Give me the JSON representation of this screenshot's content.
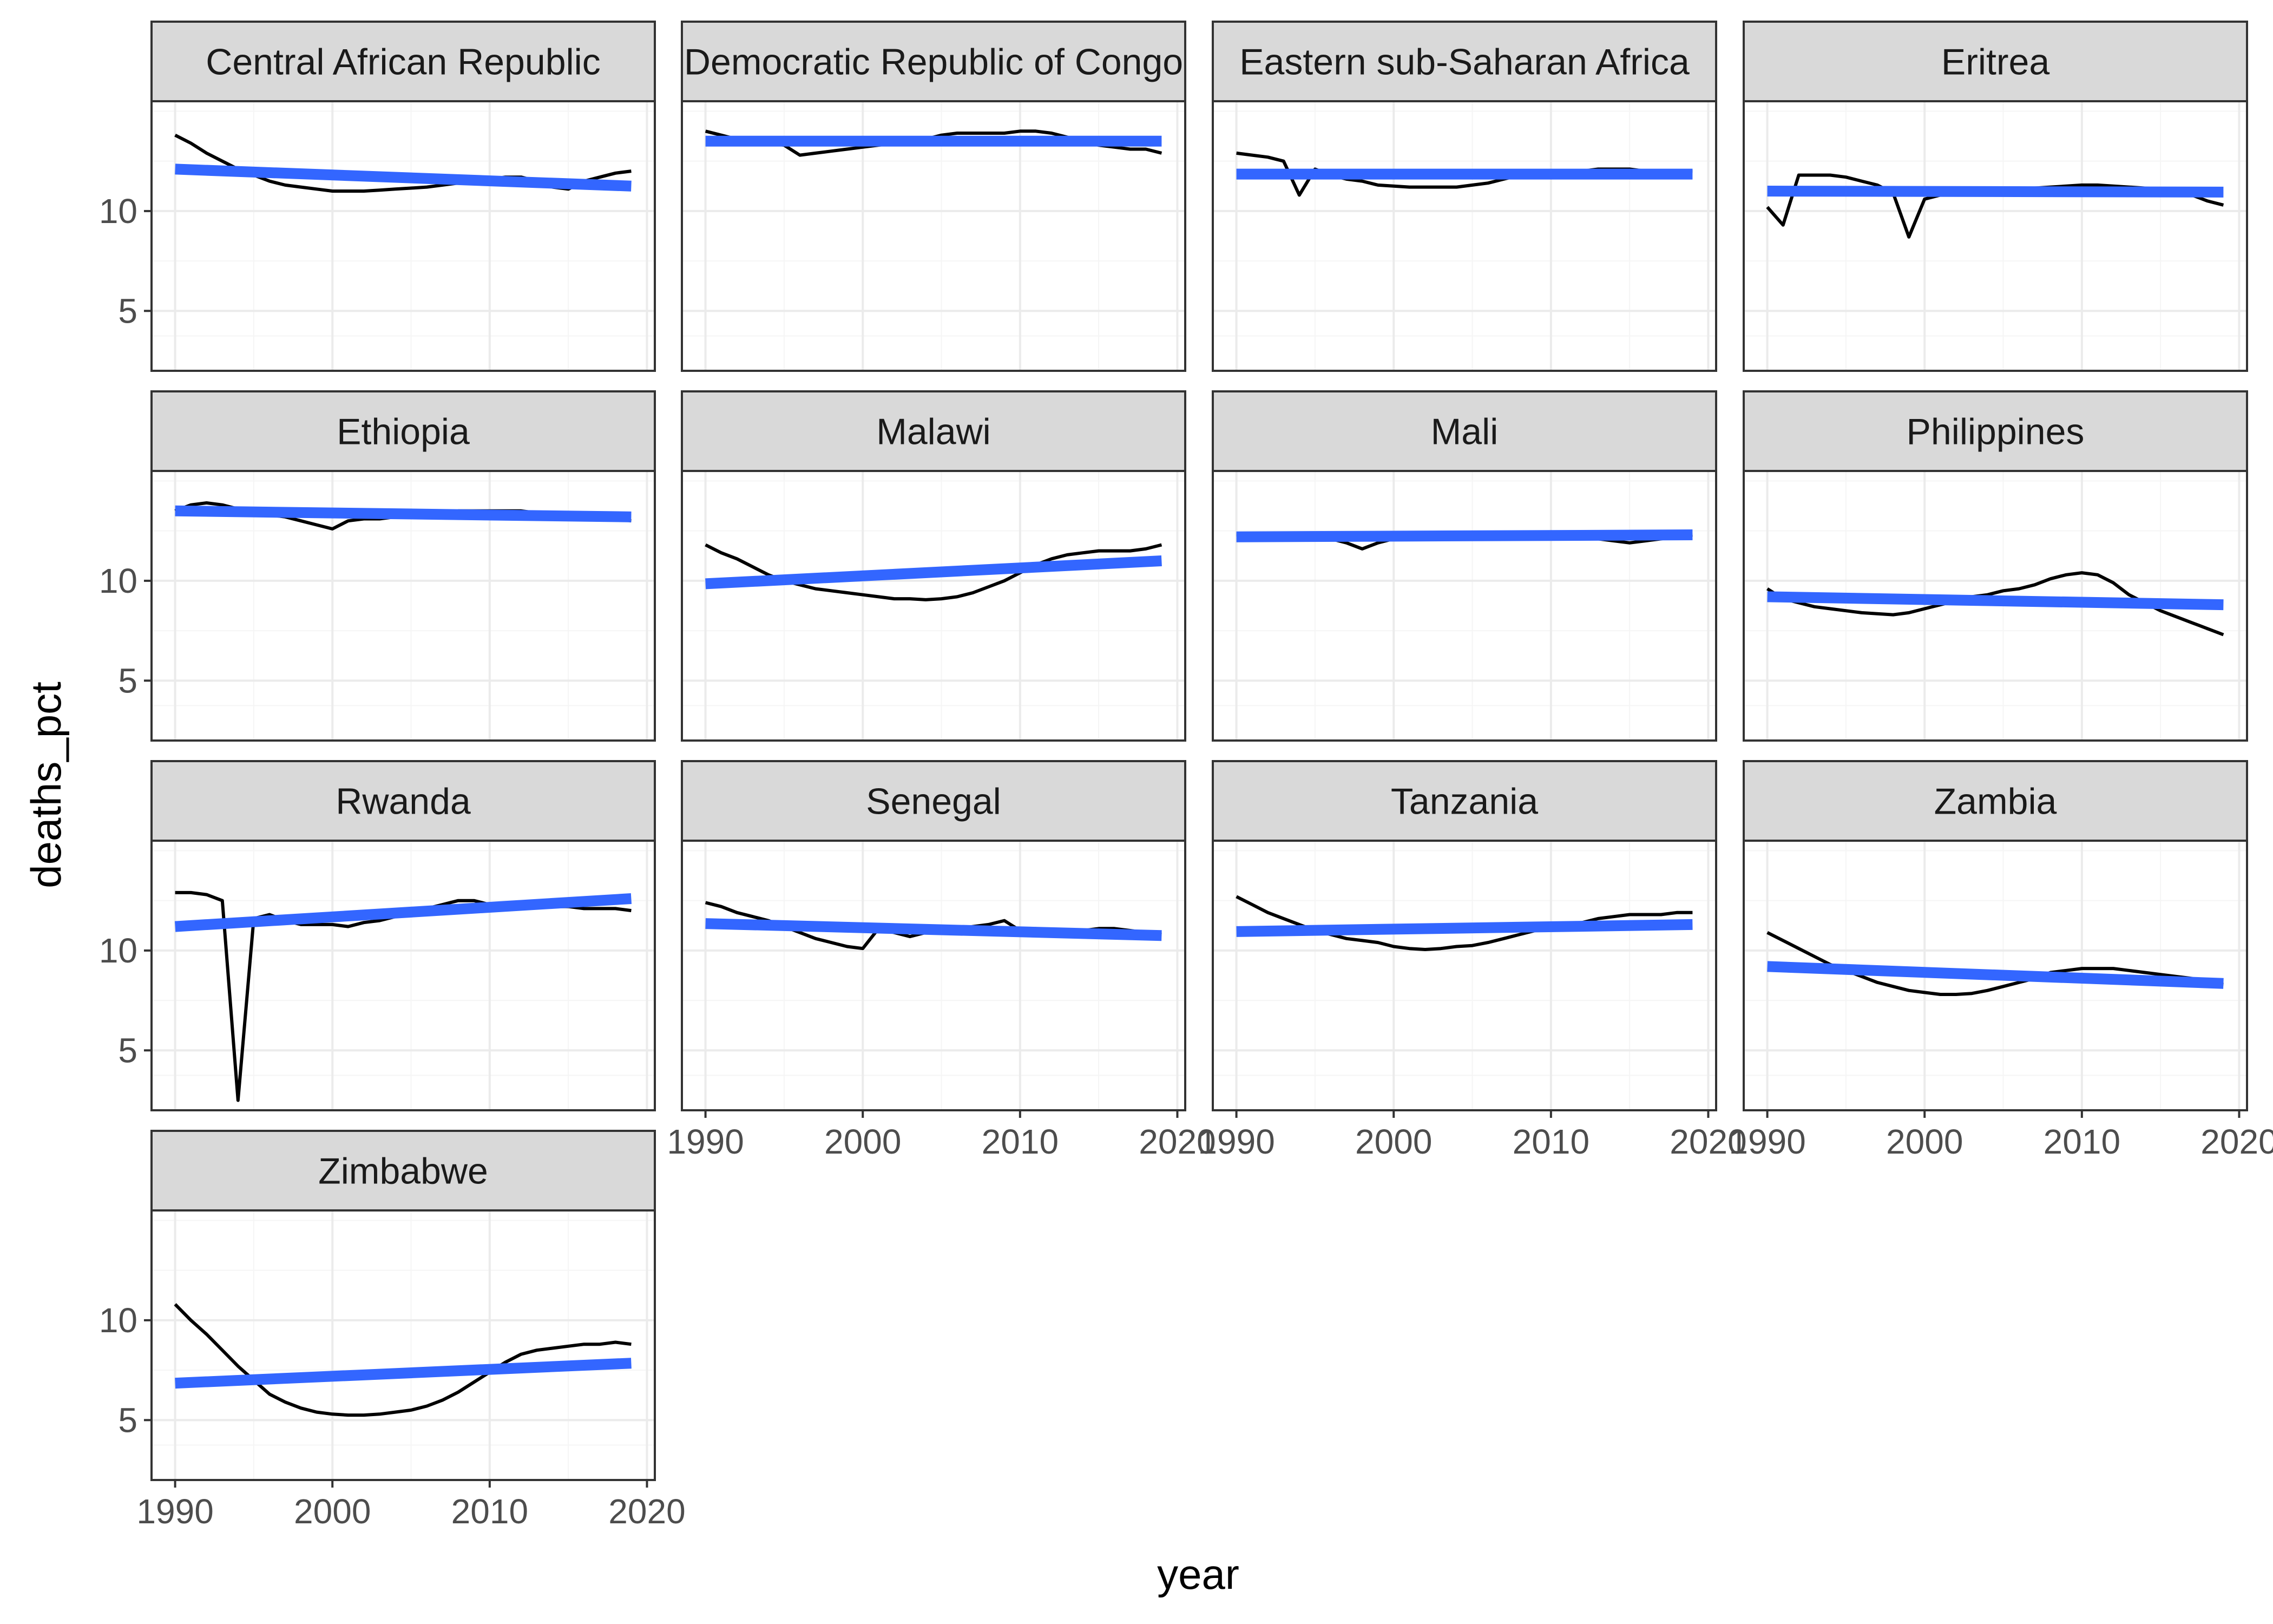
{
  "chart_data": {
    "type": "line",
    "layout": "facet-grid",
    "ncol": 4,
    "xlabel": "year",
    "ylabel": "deaths_pct",
    "xlim": [
      1988.5,
      2020.5
    ],
    "ylim": [
      2,
      15.5
    ],
    "xticks": [
      1990,
      2000,
      2010,
      2020
    ],
    "yticks": [
      5,
      10
    ],
    "grid": true,
    "colors": {
      "data_line": "#000000",
      "trend_line": "#3366FF",
      "strip_fill": "#D9D9D9",
      "panel_border": "#333333",
      "grid_major": "#EBEBEB",
      "grid_minor": "#F5F5F5"
    },
    "x": [
      1990,
      1991,
      1992,
      1993,
      1994,
      1995,
      1996,
      1997,
      1998,
      1999,
      2000,
      2001,
      2002,
      2003,
      2004,
      2005,
      2006,
      2007,
      2008,
      2009,
      2010,
      2011,
      2012,
      2013,
      2014,
      2015,
      2016,
      2017,
      2018,
      2019
    ],
    "panels": [
      {
        "name": "Central African Republic",
        "values": [
          13.8,
          13.4,
          12.9,
          12.5,
          12.1,
          11.8,
          11.5,
          11.3,
          11.2,
          11.1,
          11.0,
          11.0,
          11.0,
          11.05,
          11.1,
          11.15,
          11.2,
          11.3,
          11.4,
          11.5,
          11.6,
          11.7,
          11.7,
          11.5,
          11.2,
          11.1,
          11.5,
          11.7,
          11.9,
          12.0
        ],
        "trend": [
          12.1,
          11.25
        ]
      },
      {
        "name": "Democratic Republic of Congo",
        "values": [
          14.0,
          13.8,
          13.6,
          13.5,
          13.4,
          13.3,
          12.8,
          12.9,
          13.0,
          13.1,
          13.2,
          13.3,
          13.4,
          13.5,
          13.6,
          13.8,
          13.9,
          13.9,
          13.9,
          13.9,
          14.0,
          14.0,
          13.9,
          13.7,
          13.5,
          13.3,
          13.2,
          13.1,
          13.1,
          12.9
        ],
        "trend": [
          13.5,
          13.5
        ]
      },
      {
        "name": "Eastern sub-Saharan Africa",
        "values": [
          12.9,
          12.8,
          12.7,
          12.5,
          10.8,
          12.1,
          11.8,
          11.6,
          11.5,
          11.3,
          11.25,
          11.2,
          11.2,
          11.2,
          11.2,
          11.3,
          11.4,
          11.6,
          11.8,
          11.9,
          11.9,
          12.0,
          12.0,
          12.1,
          12.1,
          12.1,
          12.0,
          12.0,
          12.0,
          12.0
        ],
        "trend": [
          11.85,
          11.85
        ]
      },
      {
        "name": "Eritrea",
        "values": [
          10.2,
          9.3,
          11.8,
          11.8,
          11.8,
          11.7,
          11.5,
          11.3,
          10.9,
          8.7,
          10.6,
          10.8,
          10.9,
          10.95,
          11.0,
          11.05,
          11.1,
          11.15,
          11.2,
          11.25,
          11.3,
          11.3,
          11.25,
          11.2,
          11.15,
          11.1,
          11.0,
          10.8,
          10.5,
          10.3
        ],
        "trend": [
          11.0,
          10.95
        ]
      },
      {
        "name": "Ethiopia",
        "values": [
          13.5,
          13.8,
          13.9,
          13.8,
          13.6,
          13.4,
          13.3,
          13.2,
          13.0,
          12.8,
          12.6,
          13.0,
          13.1,
          13.1,
          13.2,
          13.3,
          13.35,
          13.4,
          13.5,
          13.5,
          13.5,
          13.5,
          13.5,
          13.4,
          13.3,
          13.3,
          13.2,
          13.2,
          13.1,
          13.0
        ],
        "trend": [
          13.5,
          13.2
        ]
      },
      {
        "name": "Malawi",
        "values": [
          11.8,
          11.4,
          11.1,
          10.7,
          10.3,
          10.0,
          9.8,
          9.6,
          9.5,
          9.4,
          9.3,
          9.2,
          9.1,
          9.1,
          9.05,
          9.1,
          9.2,
          9.4,
          9.7,
          10.0,
          10.4,
          10.8,
          11.1,
          11.3,
          11.4,
          11.5,
          11.5,
          11.5,
          11.6,
          11.8
        ],
        "trend": [
          9.85,
          11.0
        ]
      },
      {
        "name": "Mali",
        "values": [
          12.3,
          12.3,
          12.3,
          12.3,
          12.3,
          12.2,
          12.1,
          11.9,
          11.6,
          11.9,
          12.1,
          12.1,
          12.1,
          12.1,
          12.2,
          12.2,
          12.2,
          12.3,
          12.3,
          12.4,
          12.4,
          12.3,
          12.2,
          12.1,
          12.0,
          11.9,
          12.0,
          12.1,
          12.2,
          12.3
        ],
        "trend": [
          12.2,
          12.3
        ]
      },
      {
        "name": "Philippines",
        "values": [
          9.6,
          9.1,
          8.9,
          8.7,
          8.6,
          8.5,
          8.4,
          8.35,
          8.3,
          8.4,
          8.6,
          8.8,
          9.0,
          9.2,
          9.3,
          9.5,
          9.6,
          9.8,
          10.1,
          10.3,
          10.4,
          10.3,
          9.9,
          9.3,
          8.9,
          8.5,
          8.2,
          7.9,
          7.6,
          7.3
        ],
        "trend": [
          9.2,
          8.8
        ]
      },
      {
        "name": "Rwanda",
        "values": [
          12.9,
          12.9,
          12.8,
          12.5,
          2.5,
          11.6,
          11.8,
          11.5,
          11.3,
          11.3,
          11.3,
          11.2,
          11.4,
          11.5,
          11.7,
          11.9,
          12.1,
          12.3,
          12.5,
          12.5,
          12.3,
          12.3,
          12.3,
          12.3,
          12.2,
          12.2,
          12.1,
          12.1,
          12.1,
          12.0
        ],
        "trend": [
          11.2,
          12.6
        ]
      },
      {
        "name": "Senegal",
        "values": [
          12.4,
          12.2,
          11.9,
          11.7,
          11.5,
          11.2,
          10.9,
          10.6,
          10.4,
          10.2,
          10.1,
          11.1,
          10.9,
          10.7,
          10.9,
          11.0,
          11.1,
          11.2,
          11.3,
          11.5,
          11.0,
          11.1,
          11.0,
          11.0,
          11.0,
          11.1,
          11.1,
          11.0,
          10.9,
          10.8
        ],
        "trend": [
          11.35,
          10.75
        ]
      },
      {
        "name": "Tanzania",
        "values": [
          12.7,
          12.3,
          11.9,
          11.6,
          11.3,
          11.0,
          10.8,
          10.6,
          10.5,
          10.4,
          10.2,
          10.1,
          10.05,
          10.1,
          10.2,
          10.25,
          10.4,
          10.6,
          10.8,
          11.0,
          11.1,
          11.2,
          11.4,
          11.6,
          11.7,
          11.8,
          11.8,
          11.8,
          11.9,
          11.9
        ],
        "trend": [
          10.95,
          11.3
        ]
      },
      {
        "name": "Zambia",
        "values": [
          10.9,
          10.5,
          10.1,
          9.7,
          9.3,
          9.0,
          8.7,
          8.4,
          8.2,
          8.0,
          7.9,
          7.8,
          7.8,
          7.85,
          8.0,
          8.2,
          8.4,
          8.6,
          8.9,
          9.0,
          9.1,
          9.1,
          9.1,
          9.0,
          8.9,
          8.8,
          8.7,
          8.6,
          8.4,
          8.3
        ],
        "trend": [
          9.2,
          8.35
        ]
      },
      {
        "name": "Zimbabwe",
        "values": [
          10.8,
          10.0,
          9.3,
          8.5,
          7.7,
          7.0,
          6.3,
          5.9,
          5.6,
          5.4,
          5.3,
          5.25,
          5.25,
          5.3,
          5.4,
          5.5,
          5.7,
          6.0,
          6.4,
          6.9,
          7.4,
          7.9,
          8.3,
          8.5,
          8.6,
          8.7,
          8.8,
          8.8,
          8.9,
          8.8
        ],
        "trend": [
          6.85,
          7.85
        ]
      }
    ]
  }
}
